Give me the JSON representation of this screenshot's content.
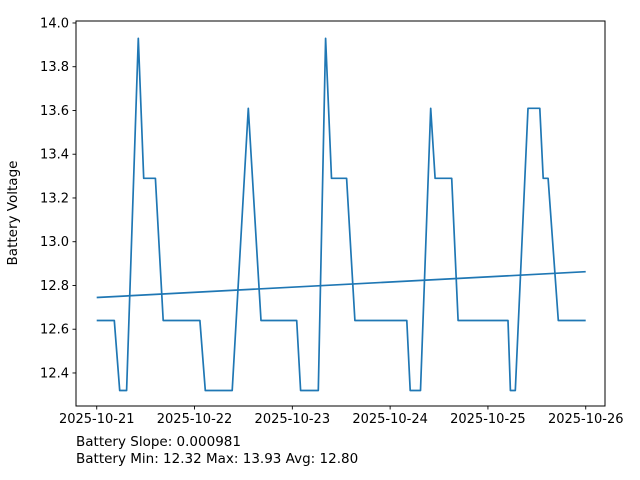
{
  "figure": {
    "background": "#ffffff",
    "axis_color": "#000000",
    "accent_color": "#1f77b4"
  },
  "chart_data": {
    "type": "line",
    "title": "",
    "xlabel": "",
    "ylabel": "Battery Voltage",
    "ylabel_color": "#1f77b4",
    "grid": false,
    "legend_position": "none",
    "x_unit": "days since 2025-10-21 00:00",
    "xtick_positions_days": [
      0,
      1,
      2,
      3,
      4,
      5
    ],
    "xtick_labels": [
      "2025-10-21",
      "2025-10-22",
      "2025-10-23",
      "2025-10-24",
      "2025-10-25",
      "2025-10-26"
    ],
    "ytick_values": [
      12.4,
      12.6,
      12.8,
      13.0,
      13.2,
      13.4,
      13.6,
      13.8,
      14.0
    ],
    "ytick_labels": [
      "12.4",
      "12.6",
      "12.8",
      "13.0",
      "13.2",
      "13.4",
      "13.6",
      "13.8",
      "14.0"
    ],
    "xlim_days": [
      -0.212,
      5.197
    ],
    "ylim": [
      12.249,
      14.009
    ],
    "series": [
      {
        "name": "battery_voltage",
        "color": "#1f77b4",
        "width": 1.7,
        "points": [
          [
            0.0,
            12.64
          ],
          [
            0.18,
            12.64
          ],
          [
            0.235,
            12.32
          ],
          [
            0.305,
            12.32
          ],
          [
            0.425,
            13.93
          ],
          [
            0.48,
            13.29
          ],
          [
            0.6,
            13.29
          ],
          [
            0.68,
            12.64
          ],
          [
            1.055,
            12.64
          ],
          [
            1.11,
            12.32
          ],
          [
            1.385,
            12.32
          ],
          [
            1.55,
            13.61
          ],
          [
            1.68,
            12.64
          ],
          [
            2.045,
            12.64
          ],
          [
            2.085,
            12.32
          ],
          [
            2.265,
            12.32
          ],
          [
            2.34,
            13.93
          ],
          [
            2.4,
            13.29
          ],
          [
            2.555,
            13.29
          ],
          [
            2.64,
            12.64
          ],
          [
            3.17,
            12.64
          ],
          [
            3.205,
            12.32
          ],
          [
            3.31,
            12.32
          ],
          [
            3.415,
            13.61
          ],
          [
            3.46,
            13.29
          ],
          [
            3.63,
            13.29
          ],
          [
            3.695,
            12.64
          ],
          [
            4.205,
            12.64
          ],
          [
            4.23,
            12.32
          ],
          [
            4.28,
            12.32
          ],
          [
            4.41,
            13.61
          ],
          [
            4.53,
            13.61
          ],
          [
            4.565,
            13.29
          ],
          [
            4.615,
            13.29
          ],
          [
            4.72,
            12.64
          ],
          [
            5.0,
            12.64
          ]
        ]
      },
      {
        "name": "battery_trend",
        "color": "#1f77b4",
        "width": 1.7,
        "points": [
          [
            0.0,
            12.745
          ],
          [
            5.0,
            12.863
          ]
        ]
      }
    ],
    "annotations": {
      "slope_line": "Battery Slope: 0.000981",
      "stats_line": "Battery Min: 12.32 Max: 13.93 Avg: 12.80"
    },
    "stats": {
      "slope": 0.000981,
      "min": 12.32,
      "max": 13.93,
      "avg": 12.8
    }
  }
}
